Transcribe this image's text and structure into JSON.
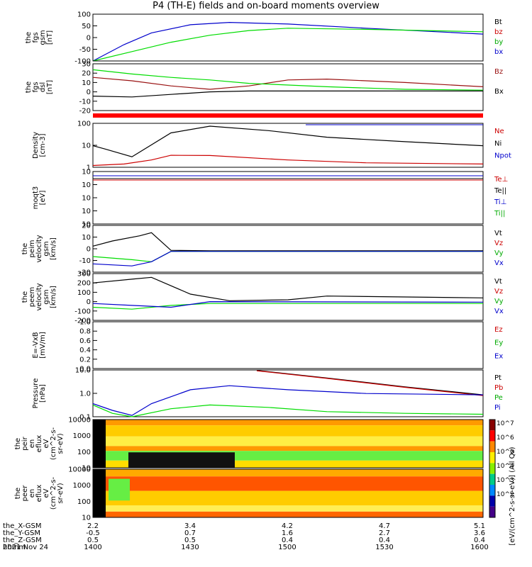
{
  "title": "P4 (TH-E) fields and on-board moments overview",
  "colors": {
    "black": "#000000",
    "red": "#cc0000",
    "green": "#00dd00",
    "blue": "#0000cc",
    "darkred": "#991111"
  },
  "chart_data": [
    {
      "type": "line",
      "panel": "fgs-gsm",
      "ylabel": [
        "the",
        "fgs",
        "gsm",
        "[nT]"
      ],
      "yticks": [
        "100",
        "50",
        "0",
        "-50",
        "-100"
      ],
      "ylim": [
        -100,
        100
      ],
      "legend": [
        "Bt",
        "bz",
        "by",
        "bx"
      ],
      "series": [
        {
          "name": "bx",
          "color": "#0000cc",
          "x": [
            0,
            0.08,
            0.15,
            0.25,
            0.35,
            0.5,
            0.7,
            1
          ],
          "y": [
            -100,
            -30,
            20,
            55,
            65,
            58,
            40,
            15
          ]
        },
        {
          "name": "by",
          "color": "#00dd00",
          "x": [
            0,
            0.1,
            0.2,
            0.3,
            0.4,
            0.5,
            0.7,
            1
          ],
          "y": [
            -100,
            -60,
            -20,
            10,
            30,
            40,
            35,
            25
          ]
        }
      ]
    },
    {
      "type": "line",
      "panel": "fgs-dsl",
      "ylabel": [
        "the",
        "fgs",
        "dsl",
        "[nT]"
      ],
      "yticks": [
        "30",
        "20",
        "10",
        "0",
        "-10",
        "-20"
      ],
      "ylim": [
        -25,
        30
      ],
      "legend": [
        "Bz",
        "Bx"
      ],
      "series": [
        {
          "name": "Bz",
          "color": "#991111",
          "x": [
            0,
            0.1,
            0.2,
            0.3,
            0.4,
            0.5,
            0.6,
            0.8,
            1
          ],
          "y": [
            14,
            10,
            4,
            0,
            4,
            11,
            12,
            8,
            3
          ]
        },
        {
          "name": "green",
          "color": "#00dd00",
          "x": [
            0,
            0.1,
            0.2,
            0.3,
            0.4,
            0.6,
            0.8,
            1
          ],
          "y": [
            23,
            18,
            14,
            11,
            7,
            3,
            0,
            -1
          ]
        },
        {
          "name": "Bx",
          "color": "#000000",
          "x": [
            0,
            0.1,
            0.2,
            0.3,
            0.4,
            0.6,
            0.8,
            1
          ],
          "y": [
            -8,
            -9,
            -6,
            -3,
            -2,
            -2,
            -2,
            -2
          ]
        }
      ]
    },
    {
      "type": "line",
      "panel": "density",
      "ylabel": [
        "Density",
        "[cm-3]"
      ],
      "yticks": [
        "100",
        "10",
        "1"
      ],
      "ylim": [
        0.8,
        200
      ],
      "log": true,
      "legend": [
        "Ne",
        "Ni",
        "Npot"
      ],
      "series": [
        {
          "name": "Ni",
          "color": "#000000",
          "x": [
            0,
            0.03,
            0.1,
            0.2,
            0.3,
            0.45,
            0.6,
            0.8,
            1
          ],
          "y": [
            12,
            8,
            3,
            60,
            140,
            80,
            35,
            20,
            12
          ]
        },
        {
          "name": "Ne",
          "color": "#cc0000",
          "x": [
            0,
            0.08,
            0.15,
            0.2,
            0.3,
            0.5,
            0.7,
            1
          ],
          "y": [
            1,
            1.2,
            2,
            3.6,
            3.5,
            2,
            1.4,
            1.2
          ]
        }
      ]
    },
    {
      "type": "line",
      "panel": "moqt3",
      "ylabel": [
        "moqt3",
        "[eV]"
      ],
      "yticks": [
        "10",
        "10",
        "10",
        "10",
        "10"
      ],
      "ylim": [
        0,
        1
      ],
      "legend": [
        "Te⊥",
        "Te||",
        "Ti⊥",
        "Ti||"
      ],
      "series": []
    },
    {
      "type": "line",
      "panel": "peim",
      "ylabel": [
        "the",
        "peim",
        "velocity",
        "gsm",
        "[km/s]"
      ],
      "yticks": [
        "20",
        "10",
        "0",
        "-10",
        "-20"
      ],
      "ylim": [
        -20,
        25
      ],
      "legend": [
        "Vt",
        "Vz",
        "Vy",
        "Vx"
      ],
      "series": [
        {
          "name": "Vt",
          "color": "#000000",
          "x": [
            0,
            0.05,
            0.12,
            0.15,
            0.2,
            0.3,
            1
          ],
          "y": [
            5,
            10,
            15,
            18,
            1,
            0.5,
            0.5
          ]
        },
        {
          "name": "Vy",
          "color": "#00dd00",
          "x": [
            0,
            0.1,
            0.15,
            0.2,
            1
          ],
          "y": [
            -5,
            -8,
            -10,
            0,
            0
          ]
        },
        {
          "name": "Vx",
          "color": "#0000cc",
          "x": [
            0,
            0.1,
            0.15,
            0.2,
            1
          ],
          "y": [
            -12,
            -14,
            -10,
            0,
            0
          ]
        }
      ]
    },
    {
      "type": "line",
      "panel": "peem",
      "ylabel": [
        "the",
        "peem",
        "velocity",
        "gsm",
        "[km/s]"
      ],
      "yticks": [
        "300",
        "200",
        "100",
        "0",
        "-100",
        "-200"
      ],
      "ylim": [
        -200,
        300
      ],
      "legend": [
        "Vt",
        "Vz",
        "Vy",
        "Vx"
      ],
      "series": [
        {
          "name": "Vt",
          "color": "#000000",
          "x": [
            0,
            0.1,
            0.15,
            0.25,
            0.35,
            0.5,
            0.6,
            0.8,
            1
          ],
          "y": [
            200,
            240,
            260,
            80,
            10,
            20,
            60,
            50,
            40
          ]
        },
        {
          "name": "Vy",
          "color": "#00dd00",
          "x": [
            0,
            0.1,
            0.2,
            0.3,
            0.5,
            1
          ],
          "y": [
            -60,
            -80,
            -40,
            -20,
            -20,
            -20
          ]
        },
        {
          "name": "Vx",
          "color": "#0000cc",
          "x": [
            0,
            0.1,
            0.2,
            0.3,
            1
          ],
          "y": [
            -20,
            -40,
            -60,
            0,
            -5
          ]
        }
      ]
    },
    {
      "type": "line",
      "panel": "efield",
      "ylabel": [
        "E=-VxB",
        "[mV/m]"
      ],
      "yticks": [
        "1.0",
        "0.8",
        "0.6",
        "0.4",
        "0.2",
        "0.0"
      ],
      "ylim": [
        0,
        1
      ],
      "legend": [
        "Ez",
        "Ey",
        "Ex"
      ],
      "series": []
    },
    {
      "type": "line",
      "panel": "pressure",
      "ylabel": [
        "Pressure",
        "[nPa]"
      ],
      "yticks": [
        "10.0",
        "1.0",
        "0.1"
      ],
      "ylim": [
        0.05,
        30
      ],
      "log": true,
      "legend": [
        "Pt",
        "Pb",
        "Pe",
        "Pi"
      ],
      "series": [
        {
          "name": "Pt",
          "color": "#000000",
          "x": [
            0.42,
            0.6,
            0.8,
            1
          ],
          "y": [
            28,
            10,
            3,
            1
          ]
        },
        {
          "name": "Pb",
          "color": "#cc0000",
          "x": [
            0.42,
            0.6,
            0.8,
            1
          ],
          "y": [
            27,
            9.5,
            2.8,
            0.9
          ]
        },
        {
          "name": "Pi",
          "color": "#0000cc",
          "x": [
            0,
            0.05,
            0.1,
            0.15,
            0.25,
            0.35,
            0.5,
            0.7,
            1
          ],
          "y": [
            0.3,
            0.12,
            0.06,
            0.3,
            2,
            3.5,
            2,
            1.2,
            1
          ]
        },
        {
          "name": "Pe",
          "color": "#00dd00",
          "x": [
            0,
            0.05,
            0.1,
            0.2,
            0.3,
            0.45,
            0.6,
            0.8,
            1
          ],
          "y": [
            0.25,
            0.08,
            0.05,
            0.15,
            0.25,
            0.18,
            0.1,
            0.08,
            0.07
          ]
        }
      ]
    },
    {
      "type": "heatmap",
      "panel": "peir",
      "ylabel": [
        "the",
        "peir",
        "en",
        "eflux",
        "eV",
        "(cm^2-s-",
        "sr-eV)"
      ],
      "yticks": [
        "10000",
        "1000",
        "100",
        "10"
      ]
    },
    {
      "type": "heatmap",
      "panel": "peer",
      "ylabel": [
        "the",
        "peer",
        "en",
        "eflux",
        "eV",
        "(cm^2-s-",
        "sr-eV)"
      ],
      "yticks": [
        "10000",
        "1000",
        "100",
        "10"
      ]
    }
  ],
  "colorbar": {
    "label": "[eV/(cm^2-s-sr-eV)] (All Qs)",
    "ticks": [
      "10^7",
      "10^6",
      "10^5",
      "10^4",
      "10^3",
      "10^2"
    ]
  },
  "xaxis": {
    "rows": [
      {
        "label": "the_X-GSM",
        "values": [
          "2.2",
          "3.4",
          "4.2",
          "4.7",
          "5.1"
        ]
      },
      {
        "label": "the_Y-GSM",
        "values": [
          "-0.5",
          "0.7",
          "1.6",
          "2.7",
          "3.6"
        ]
      },
      {
        "label": "the_Z-GSM",
        "values": [
          "0.5",
          "0.5",
          "0.4",
          "0.4",
          "0.4"
        ]
      },
      {
        "label": "hhmm",
        "values": [
          "1400",
          "1430",
          "1500",
          "1530",
          "1600"
        ]
      }
    ],
    "date": "2021 Nov 24"
  }
}
